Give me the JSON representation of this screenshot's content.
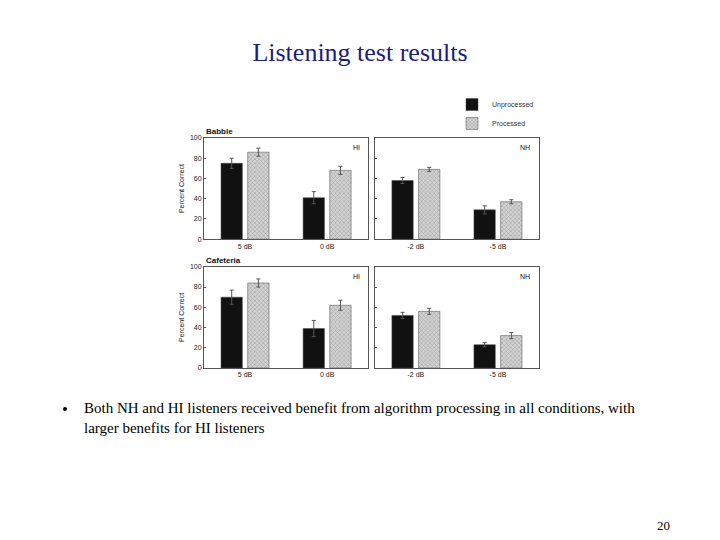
{
  "slide": {
    "title": "Listening test results",
    "bullets": [
      "Both NH and HI listeners received benefit from algorithm processing in all conditions, with larger benefits for HI listeners"
    ],
    "page": "20"
  },
  "chart_data": [
    {
      "type": "bar",
      "title": "Babble",
      "annotations": [
        "HI"
      ],
      "y_label": "Percent Correct",
      "categories": [
        "5 dB",
        "0 dB"
      ],
      "series": [
        {
          "name": "Unprocessed",
          "color": "#111111",
          "values": [
            75,
            41
          ],
          "errors": [
            5,
            6
          ]
        },
        {
          "name": "Processed",
          "color": "#d4d4d4",
          "marker": "hatched",
          "values": [
            86,
            68
          ],
          "errors": [
            4,
            4
          ]
        }
      ],
      "ylim": [
        0,
        100
      ],
      "yticks": [
        0,
        20,
        40,
        60,
        80,
        100
      ],
      "grid": false
    },
    {
      "type": "bar",
      "annotations": [
        "NH"
      ],
      "legend": "upper right",
      "tick_labels": "x",
      "categories": [
        "-2 dB",
        "-5 dB"
      ],
      "series": [
        {
          "name": "Unprocessed",
          "color": "#111111",
          "values": [
            58,
            29
          ],
          "errors": [
            3,
            4
          ]
        },
        {
          "name": "Processed",
          "color": "#d4d4d4",
          "marker": "hatched",
          "values": [
            69,
            37
          ],
          "errors": [
            2,
            2
          ]
        }
      ],
      "ylim": [
        0,
        100
      ],
      "yticks": [
        0,
        20,
        40,
        60,
        80,
        100
      ],
      "grid": false
    },
    {
      "type": "bar",
      "title": "Cafeteria",
      "annotations": [
        "HI"
      ],
      "y_label": "Percent Correct",
      "categories": [
        "5 dB",
        "0 dB"
      ],
      "series": [
        {
          "name": "Unprocessed",
          "color": "#111111",
          "values": [
            70,
            39
          ],
          "errors": [
            7,
            8
          ]
        },
        {
          "name": "Processed",
          "color": "#d4d4d4",
          "marker": "hatched",
          "values": [
            84,
            62
          ],
          "errors": [
            4,
            5
          ]
        }
      ],
      "ylim": [
        0,
        100
      ],
      "yticks": [
        0,
        20,
        40,
        60,
        80,
        100
      ],
      "grid": false
    },
    {
      "type": "bar",
      "annotations": [
        "NH"
      ],
      "tick_labels": "x",
      "categories": [
        "-2 dB",
        "-5 dB"
      ],
      "series": [
        {
          "name": "Unprocessed",
          "color": "#111111",
          "values": [
            52,
            23
          ],
          "errors": [
            3,
            2
          ]
        },
        {
          "name": "Processed",
          "color": "#d4d4d4",
          "marker": "hatched",
          "values": [
            56,
            32
          ],
          "errors": [
            3,
            3
          ]
        }
      ],
      "ylim": [
        0,
        100
      ],
      "yticks": [
        0,
        20,
        40,
        60,
        80,
        100
      ],
      "grid": false
    }
  ]
}
